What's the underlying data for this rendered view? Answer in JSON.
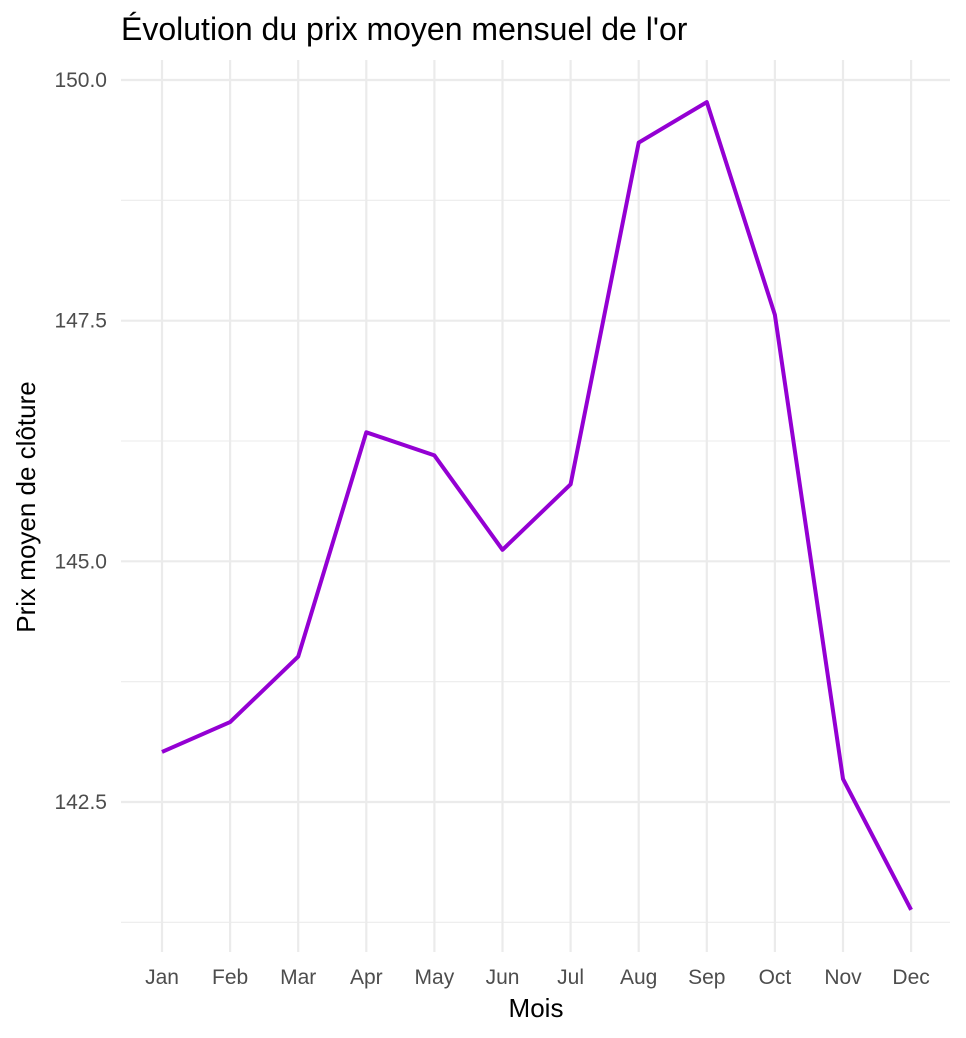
{
  "chart_data": {
    "type": "line",
    "title": "Évolution du prix moyen mensuel de l'or",
    "xlabel": "Mois",
    "ylabel": "Prix moyen de clôture",
    "categories": [
      "Jan",
      "Feb",
      "Mar",
      "Apr",
      "May",
      "Jun",
      "Jul",
      "Aug",
      "Sep",
      "Oct",
      "Nov",
      "Dec"
    ],
    "values": [
      143.02,
      143.33,
      144.01,
      146.34,
      146.1,
      145.12,
      145.8,
      149.35,
      149.77,
      147.56,
      142.74,
      141.38
    ],
    "y_ticks": [
      "142.5",
      "145.0",
      "147.5",
      "150.0"
    ],
    "ylim": [
      141.07,
      150.09
    ],
    "grid": true,
    "legend": "none",
    "line_color": "#9400D3"
  }
}
